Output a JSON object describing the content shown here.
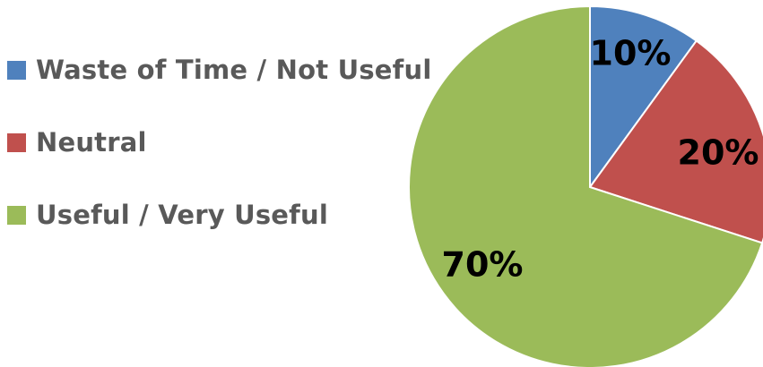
{
  "chart_data": {
    "type": "pie",
    "title": "",
    "categories": [
      "Waste of Time / Not Useful",
      "Neutral",
      "Useful / Very Useful"
    ],
    "values": [
      10,
      20,
      70
    ],
    "data_labels": [
      "10%",
      "20%",
      "70%"
    ],
    "colors": [
      "#4f81bd",
      "#c0504d",
      "#9bbb59"
    ],
    "start_angle_deg": 0,
    "direction": "clockwise",
    "legend_position": "left"
  }
}
